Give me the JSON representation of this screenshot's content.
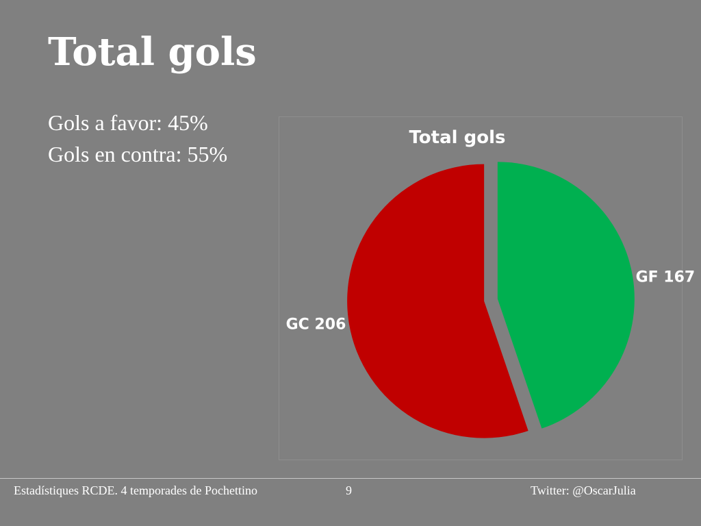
{
  "slide": {
    "title": "Total gols",
    "bullets": [
      "Gols a favor: 45%",
      "Gols en contra: 55%"
    ]
  },
  "chart_data": {
    "type": "pie",
    "title": "Total gols",
    "slices": [
      {
        "label": "GF 167",
        "value": 167,
        "color": "#00b050"
      },
      {
        "label": "GC 206",
        "value": 206,
        "color": "#c00000"
      }
    ],
    "start_angle_deg": 0,
    "direction": "clockwise",
    "exploded": true,
    "legend": "none"
  },
  "footer": {
    "left": "Estadístiques RCDE. 4 temporades de Pochettino",
    "page_number": "9",
    "right": "Twitter: @OscarJulia"
  }
}
